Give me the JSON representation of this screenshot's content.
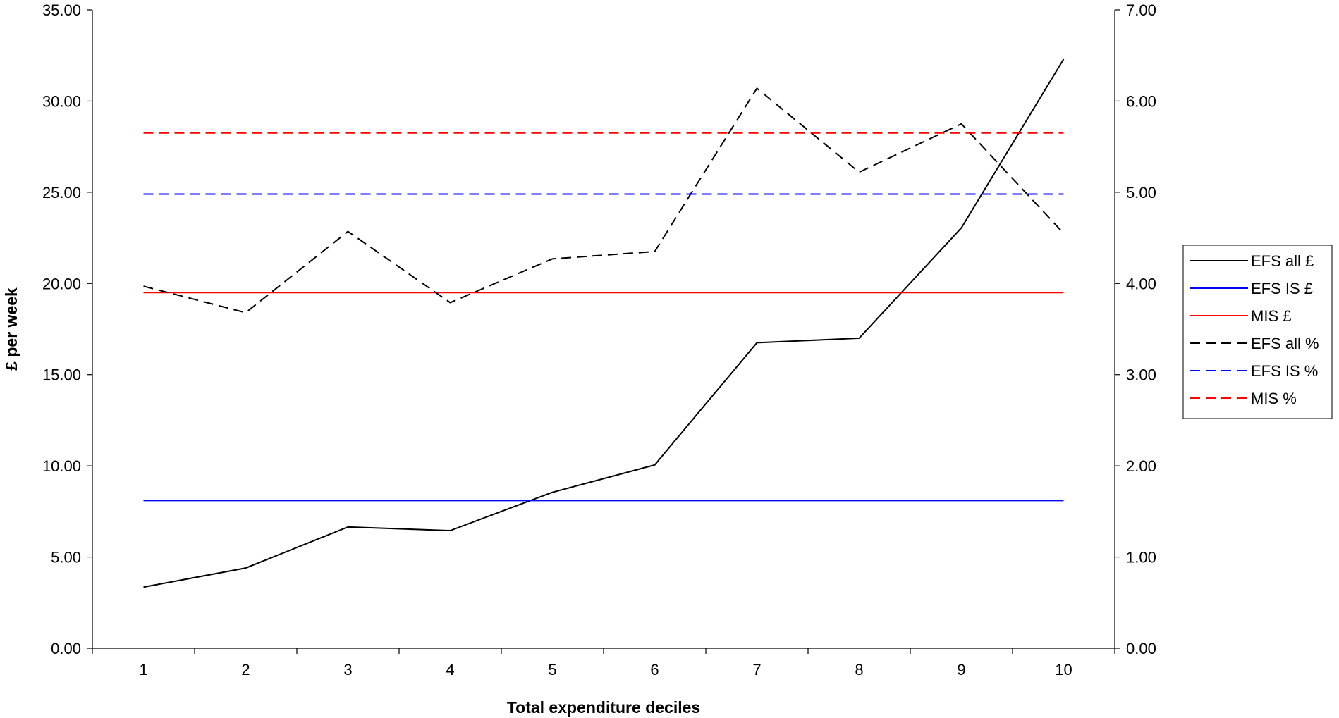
{
  "chart_data": {
    "type": "line",
    "xlabel": "Total expenditure deciles",
    "ylabel": "£ per week",
    "y2label": "",
    "categories": [
      "1",
      "2",
      "3",
      "4",
      "5",
      "6",
      "7",
      "8",
      "9",
      "10"
    ],
    "ylim": [
      0,
      35
    ],
    "y2lim": [
      0,
      7
    ],
    "y_ticks": [
      "0.00",
      "5.00",
      "10.00",
      "15.00",
      "20.00",
      "25.00",
      "30.00",
      "35.00"
    ],
    "y2_ticks": [
      "0.00",
      "1.00",
      "2.00",
      "3.00",
      "4.00",
      "5.00",
      "6.00",
      "7.00"
    ],
    "grid": false,
    "legend_position": "right",
    "series": [
      {
        "name": "EFS all £",
        "axis": "left",
        "color": "#000000",
        "dashed": false,
        "values": [
          3.35,
          4.4,
          6.65,
          6.45,
          8.55,
          10.05,
          16.75,
          17.0,
          23.05,
          32.3
        ]
      },
      {
        "name": "EFS IS £",
        "axis": "left",
        "color": "#0000ff",
        "dashed": false,
        "values": [
          8.1,
          8.1,
          8.1,
          8.1,
          8.1,
          8.1,
          8.1,
          8.1,
          8.1,
          8.1
        ]
      },
      {
        "name": "MIS £",
        "axis": "left",
        "color": "#ff0000",
        "dashed": false,
        "values": [
          19.5,
          19.5,
          19.5,
          19.5,
          19.5,
          19.5,
          19.5,
          19.5,
          19.5,
          19.5
        ]
      },
      {
        "name": "EFS all %",
        "axis": "right",
        "color": "#000000",
        "dashed": true,
        "values": [
          3.97,
          3.68,
          4.57,
          3.79,
          4.27,
          4.35,
          6.14,
          5.22,
          5.75,
          4.55
        ]
      },
      {
        "name": "EFS IS %",
        "axis": "right",
        "color": "#0000ff",
        "dashed": true,
        "values": [
          4.98,
          4.98,
          4.98,
          4.98,
          4.98,
          4.98,
          4.98,
          4.98,
          4.98,
          4.98
        ]
      },
      {
        "name": "MIS %",
        "axis": "right",
        "color": "#ff0000",
        "dashed": true,
        "values": [
          5.65,
          5.65,
          5.65,
          5.65,
          5.65,
          5.65,
          5.65,
          5.65,
          5.65,
          5.65
        ]
      }
    ]
  }
}
